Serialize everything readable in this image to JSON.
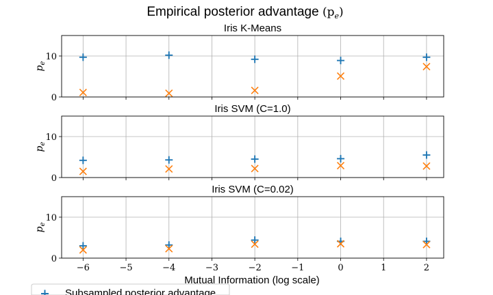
{
  "figure": {
    "suptitle_text": "Empirical posterior advantage ",
    "suptitle_math": "(p",
    "suptitle_math_sub": "e",
    "suptitle_math_close": ")",
    "xlabel": "Mutual Information (log scale)",
    "legend_label": "Subsampled posterior advantage"
  },
  "chart_data": [
    {
      "type": "scatter",
      "title": "Iris K-Means",
      "ylabel": "p",
      "ylabel_sub": "e",
      "x_ticks": [
        -6,
        -5,
        -4,
        -3,
        -2,
        -1,
        0,
        1,
        2
      ],
      "x_tick_labels": [
        "−6",
        "−5",
        "−4",
        "−3",
        "−2",
        "−1",
        "0",
        "1",
        "2"
      ],
      "y_ticks": [
        0,
        10
      ],
      "y_tick_labels": [
        "0",
        "10"
      ],
      "xlim": [
        -6.5,
        2.4
      ],
      "ylim": [
        0,
        15
      ],
      "grid": true,
      "show_x_tick_labels": false,
      "series": [
        {
          "name": "Subsampled posterior advantage",
          "marker": "plus",
          "color": "#1f77b4",
          "x": [
            -6,
            -4,
            -2,
            0,
            2
          ],
          "y": [
            9.7,
            10.2,
            9.2,
            8.9,
            9.7
          ]
        },
        {
          "marker": "x",
          "color": "#ff7f0e",
          "x": [
            -6,
            -4,
            -2,
            0,
            2
          ],
          "y": [
            1.1,
            0.9,
            1.6,
            5.1,
            7.4
          ]
        }
      ]
    },
    {
      "type": "scatter",
      "title": "Iris SVM (C=1.0)",
      "ylabel": "p",
      "ylabel_sub": "e",
      "x_ticks": [
        -6,
        -5,
        -4,
        -3,
        -2,
        -1,
        0,
        1,
        2
      ],
      "x_tick_labels": [
        "−6",
        "−5",
        "−4",
        "−3",
        "−2",
        "−1",
        "0",
        "1",
        "2"
      ],
      "y_ticks": [
        0,
        10
      ],
      "y_tick_labels": [
        "0",
        "10"
      ],
      "xlim": [
        -6.5,
        2.4
      ],
      "ylim": [
        0,
        15
      ],
      "grid": true,
      "show_x_tick_labels": false,
      "series": [
        {
          "name": "Subsampled posterior advantage",
          "marker": "plus",
          "color": "#1f77b4",
          "x": [
            -6,
            -4,
            -2,
            0,
            2
          ],
          "y": [
            4.2,
            4.3,
            4.5,
            4.6,
            5.5
          ]
        },
        {
          "marker": "x",
          "color": "#ff7f0e",
          "x": [
            -6,
            -4,
            -2,
            0,
            2
          ],
          "y": [
            1.5,
            2.1,
            2.2,
            2.9,
            2.8
          ]
        }
      ]
    },
    {
      "type": "scatter",
      "title": "Iris SVM (C=0.02)",
      "ylabel": "p",
      "ylabel_sub": "e",
      "x_ticks": [
        -6,
        -5,
        -4,
        -3,
        -2,
        -1,
        0,
        1,
        2
      ],
      "x_tick_labels": [
        "−6",
        "−5",
        "−4",
        "−3",
        "−2",
        "−1",
        "0",
        "1",
        "2"
      ],
      "y_ticks": [
        0,
        10
      ],
      "y_tick_labels": [
        "0",
        "10"
      ],
      "xlim": [
        -6.5,
        2.4
      ],
      "ylim": [
        0,
        15
      ],
      "grid": true,
      "show_x_tick_labels": true,
      "series": [
        {
          "name": "Subsampled posterior advantage",
          "marker": "plus",
          "color": "#1f77b4",
          "x": [
            -6,
            -4,
            -2,
            0,
            2
          ],
          "y": [
            3.0,
            3.2,
            4.4,
            4.1,
            4.1
          ]
        },
        {
          "marker": "x",
          "color": "#ff7f0e",
          "x": [
            -6,
            -4,
            -2,
            0,
            2
          ],
          "y": [
            2.0,
            2.3,
            3.4,
            3.5,
            3.3
          ]
        }
      ]
    }
  ]
}
